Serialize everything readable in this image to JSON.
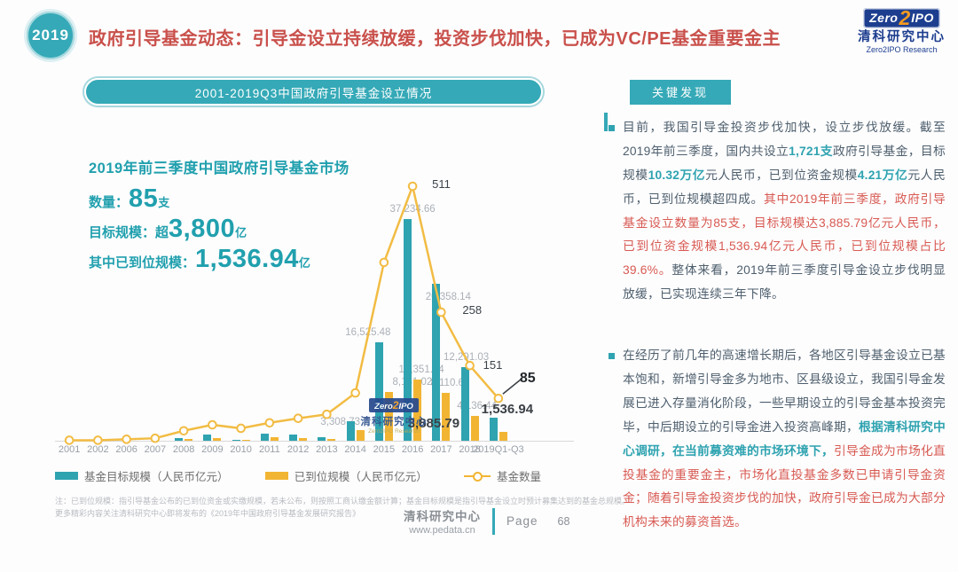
{
  "header": {
    "badge": "2019",
    "title": "政府引导基金动态：引导金设立持续放缓，投资步伐加快，已成为VC/PE基金重要金主",
    "logo": {
      "zero": "Zero",
      "two": "2",
      "ipo": "IPO",
      "name_cn": "清科研究中心",
      "name_en": "Zero2IPO Research"
    }
  },
  "chart_section": {
    "banner": "2001-2019Q3中国政府引导基金设立情况",
    "stats": {
      "title": "2019年前三季度中国政府引导基金市场",
      "row1": {
        "label": "数量：",
        "value": "85",
        "unit": "支"
      },
      "row2": {
        "label": "目标规模：",
        "prefix": "超",
        "value": "3,800",
        "unit": "亿"
      },
      "row3": {
        "label": "其中已到位规模：",
        "value": "1,536.94",
        "unit": "亿"
      }
    },
    "watermark": {
      "zero": "Zero",
      "two": "2",
      "ipo": "IPO",
      "line_cn": "清科研究中心",
      "line_en": "Zero2IPO Research"
    }
  },
  "chart_data": {
    "type": "combo-bar-line",
    "title": "2001-2019Q3中国政府引导基金设立情况",
    "categories": [
      "2001",
      "2002",
      "2006",
      "2007",
      "2008",
      "2009",
      "2010",
      "2011",
      "2012",
      "2013",
      "2014",
      "2015",
      "2016",
      "2017",
      "2018",
      "2019Q1-Q3"
    ],
    "series": [
      {
        "name": "基金目标规模（人民币亿元）",
        "type": "bar",
        "color": "#2fa3b0",
        "values": [
          0,
          0,
          0,
          0,
          500,
          1000,
          150,
          1250,
          1000,
          600,
          3308.73,
          16525.48,
          37234.66,
          26358.14,
          12291.03,
          3885.79
        ],
        "labels": [
          null,
          null,
          null,
          null,
          null,
          null,
          null,
          null,
          null,
          null,
          "3,308.73",
          "16,525.48",
          "37,234.66",
          "26,358.14",
          "12,291.03",
          "3,885.79"
        ]
      },
      {
        "name": "已到位规模（人民币亿元）",
        "type": "bar",
        "color": "#f2b533",
        "values": [
          0,
          0,
          0,
          0,
          250,
          500,
          100,
          550,
          400,
          250,
          1745,
          8161.02,
          10351.24,
          8110.61,
          4136.44,
          1536.94
        ],
        "labels": [
          null,
          null,
          null,
          null,
          null,
          null,
          null,
          null,
          null,
          null,
          null,
          "8,161.02",
          "10,351.24",
          "8,110.61",
          "4,136.44",
          "1,536.94"
        ]
      },
      {
        "name": "基金数量",
        "type": "line",
        "color": "#f2bc43",
        "values": [
          1,
          1,
          3,
          5,
          20,
          32,
          25,
          36,
          45,
          53,
          96,
          358,
          511,
          258,
          151,
          85
        ],
        "labels": [
          null,
          null,
          null,
          null,
          null,
          null,
          null,
          null,
          null,
          null,
          null,
          null,
          "511",
          "258",
          "151",
          "85"
        ]
      }
    ],
    "emphasis_labels": [
      "3,885.79",
      "1,536.94",
      "85"
    ],
    "legend_position": "bottom",
    "grid": false,
    "y_axis_visible": false,
    "ylim_bar": [
      0,
      40000
    ],
    "ylim_line": [
      0,
      550
    ]
  },
  "key_findings": {
    "title": "关键发现",
    "bullets": [
      {
        "segments": [
          {
            "s": "n",
            "t": "目前，我国引导金投资步伐加快，设立步伐放缓。截至2019年前三季度，国内共设立"
          },
          {
            "s": "t",
            "t": "1,721支"
          },
          {
            "s": "n",
            "t": "政府引导基金，目标规模"
          },
          {
            "s": "t",
            "t": "10.32万亿"
          },
          {
            "s": "n",
            "t": "元人民币，已到位资金规模"
          },
          {
            "s": "t",
            "t": "4.21万亿"
          },
          {
            "s": "n",
            "t": "元人民币，已到位规模超四成。"
          },
          {
            "s": "r",
            "t": "其中2019年前三季度，政府引导基金设立数量为85支，目标规模达3,885.79亿元人民币，已到位资金规模1,536.94亿元人民币，已到位规模占比39.6%。"
          },
          {
            "s": "n",
            "t": "整体来看，2019年前三季度引导金设立步伐明显放缓，已实现连续三年下降。"
          }
        ]
      },
      {
        "segments": [
          {
            "s": "n",
            "t": "在经历了前几年的高速增长期后，各地区引导基金设立已基本饱和，新增引导金多为地市、区县级设立，我国引导金发展已进入存量消化阶段，一些早期设立的引导金基本投资完毕，中后期设立的引导金进入投资高峰期，"
          },
          {
            "s": "t",
            "t": "根据清科研究中心调研，在当前募资难的市场环境下，"
          },
          {
            "s": "r",
            "t": "引导金成为市场化直投基金的重要金主，市场化直投基金多数已申请引导金资金；随着引导金投资步伐的加快，政府引导金已成为大部分机构未来的募资首选。"
          }
        ]
      }
    ]
  },
  "footer": {
    "note1": "注：已到位规模：指引导基金公布的已到位资金或实缴规模，若未公布，则按照工商认缴金额计算；基金目标规模是指引导基金设立时预计募集达到的基金总规模。",
    "note2": "更多精彩内容关注清科研究中心即将发布的《2019年中国政府引导基金发展研究报告》",
    "brand": "清科研究中心",
    "site": "www.pedata.cn",
    "page_label": "Page",
    "page_number": "68"
  }
}
